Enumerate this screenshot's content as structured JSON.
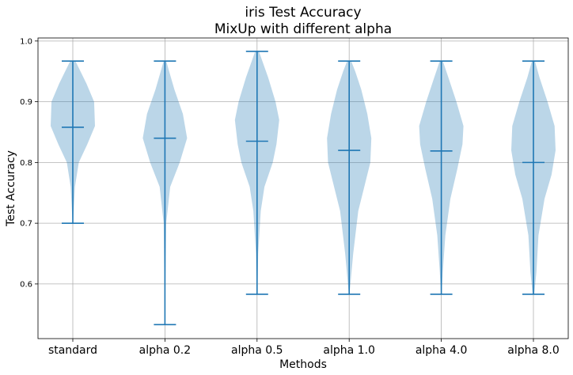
{
  "chart_data": {
    "type": "violin",
    "title": "iris Test Accuracy",
    "subtitle": "MixUp with different alpha",
    "xlabel": "Methods",
    "ylabel": "Test Accuracy",
    "ylim": [
      0.51,
      1.005
    ],
    "yticks": [
      "0.6",
      "0.7",
      "0.8",
      "0.9",
      "1.0"
    ],
    "grid": true,
    "colors": {
      "violin": "#1f77b4"
    },
    "categories": [
      "standard",
      "alpha 0.2",
      "alpha 0.5",
      "alpha 1.0",
      "alpha 4.0",
      "alpha 8.0"
    ],
    "series": [
      {
        "min": 0.7,
        "max": 0.967,
        "median": 0.858,
        "density": [
          [
            0.7,
            0.002
          ],
          [
            0.72,
            0.01
          ],
          [
            0.76,
            0.025
          ],
          [
            0.8,
            0.07
          ],
          [
            0.83,
            0.17
          ],
          [
            0.86,
            0.26
          ],
          [
            0.9,
            0.25
          ],
          [
            0.93,
            0.16
          ],
          [
            0.95,
            0.09
          ],
          [
            0.967,
            0.03
          ]
        ]
      },
      {
        "min": 0.533,
        "max": 0.967,
        "median": 0.84,
        "density": [
          [
            0.533,
            0.003
          ],
          [
            0.6,
            0.005
          ],
          [
            0.7,
            0.012
          ],
          [
            0.76,
            0.05
          ],
          [
            0.8,
            0.14
          ],
          [
            0.84,
            0.21
          ],
          [
            0.88,
            0.17
          ],
          [
            0.92,
            0.09
          ],
          [
            0.95,
            0.04
          ],
          [
            0.967,
            0.012
          ]
        ]
      },
      {
        "min": 0.583,
        "max": 0.983,
        "median": 0.835,
        "density": [
          [
            0.583,
            0.003
          ],
          [
            0.65,
            0.012
          ],
          [
            0.72,
            0.04
          ],
          [
            0.76,
            0.08
          ],
          [
            0.8,
            0.17
          ],
          [
            0.83,
            0.21
          ],
          [
            0.87,
            0.24
          ],
          [
            0.9,
            0.2
          ],
          [
            0.94,
            0.12
          ],
          [
            0.983,
            0.02
          ]
        ]
      },
      {
        "min": 0.583,
        "max": 0.967,
        "median": 0.82,
        "density": [
          [
            0.583,
            0.003
          ],
          [
            0.65,
            0.04
          ],
          [
            0.72,
            0.09
          ],
          [
            0.76,
            0.15
          ],
          [
            0.8,
            0.21
          ],
          [
            0.84,
            0.22
          ],
          [
            0.88,
            0.18
          ],
          [
            0.92,
            0.12
          ],
          [
            0.95,
            0.06
          ],
          [
            0.967,
            0.02
          ]
        ]
      },
      {
        "min": 0.583,
        "max": 0.967,
        "median": 0.819,
        "density": [
          [
            0.583,
            0.003
          ],
          [
            0.62,
            0.015
          ],
          [
            0.68,
            0.04
          ],
          [
            0.74,
            0.09
          ],
          [
            0.79,
            0.16
          ],
          [
            0.83,
            0.21
          ],
          [
            0.86,
            0.22
          ],
          [
            0.9,
            0.15
          ],
          [
            0.94,
            0.07
          ],
          [
            0.967,
            0.015
          ]
        ]
      },
      {
        "min": 0.583,
        "max": 0.967,
        "median": 0.8,
        "density": [
          [
            0.583,
            0.008
          ],
          [
            0.62,
            0.03
          ],
          [
            0.68,
            0.05
          ],
          [
            0.74,
            0.11
          ],
          [
            0.78,
            0.18
          ],
          [
            0.82,
            0.22
          ],
          [
            0.86,
            0.21
          ],
          [
            0.9,
            0.14
          ],
          [
            0.94,
            0.06
          ],
          [
            0.967,
            0.015
          ]
        ]
      }
    ]
  }
}
